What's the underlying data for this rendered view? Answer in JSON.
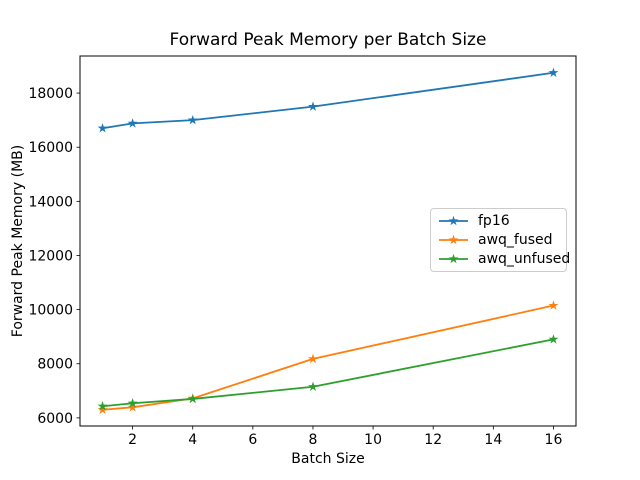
{
  "chart_data": {
    "type": "line",
    "title": "Forward Peak Memory per Batch Size",
    "xlabel": "Batch Size",
    "ylabel": "Forward Peak Memory (MB)",
    "x": [
      1,
      2,
      4,
      8,
      16
    ],
    "series": [
      {
        "name": "fp16",
        "color": "#1f77b4",
        "values": [
          16700,
          16880,
          17000,
          17500,
          18750
        ]
      },
      {
        "name": "awq_fused",
        "color": "#ff7f0e",
        "values": [
          6300,
          6390,
          6720,
          8180,
          10150
        ]
      },
      {
        "name": "awq_unfused",
        "color": "#2ca02c",
        "values": [
          6430,
          6540,
          6700,
          7150,
          8900
        ]
      }
    ],
    "marker": "star",
    "xticks": [
      2,
      4,
      6,
      8,
      10,
      12,
      14,
      16
    ],
    "yticks": [
      6000,
      8000,
      10000,
      12000,
      14000,
      16000,
      18000
    ],
    "xlim": [
      0.25,
      16.75
    ],
    "ylim": [
      5700,
      19370
    ],
    "grid": false,
    "legend_position": "center-right",
    "axis_color": "#000000",
    "background_color": "#ffffff"
  }
}
